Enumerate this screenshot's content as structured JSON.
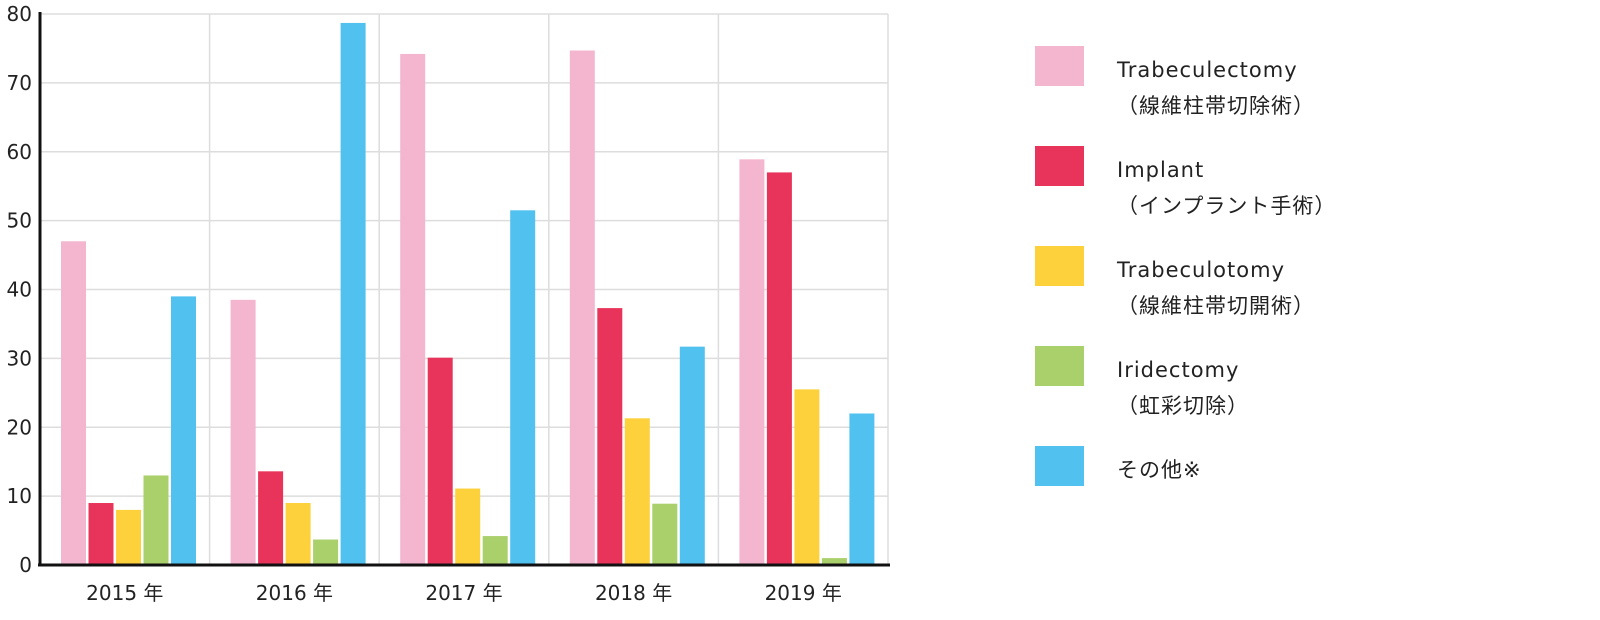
{
  "chart_data": {
    "type": "bar",
    "categories": [
      "2015 年",
      "2016 年",
      "2017 年",
      "2018 年",
      "2019 年"
    ],
    "ylim": [
      0,
      80
    ],
    "yticks": [
      0,
      10,
      20,
      30,
      40,
      50,
      60,
      70,
      80
    ],
    "grid": true,
    "legend_position": "right",
    "series": [
      {
        "name": "Trabeculectomy",
        "name_sub": "（線維柱帯切除術）",
        "color": "#f4b5cf",
        "values": [
          47,
          38.5,
          74.2,
          74.7,
          58.9
        ]
      },
      {
        "name": "Implant",
        "name_sub": "（インプラント手術）",
        "color": "#e8345a",
        "values": [
          9,
          13.6,
          30.1,
          37.3,
          57
        ]
      },
      {
        "name": "Trabeculotomy",
        "name_sub": "（線維柱帯切開術）",
        "color": "#fdd13b",
        "values": [
          8,
          9,
          11.1,
          21.3,
          25.5
        ]
      },
      {
        "name": "Iridectomy",
        "name_sub": "（虹彩切除）",
        "color": "#a9d06a",
        "values": [
          13,
          3.7,
          4.2,
          8.9,
          1
        ]
      },
      {
        "name": "その他※",
        "name_sub": "",
        "color": "#51c2ef",
        "values": [
          39,
          78.7,
          51.5,
          31.7,
          22
        ]
      }
    ]
  }
}
